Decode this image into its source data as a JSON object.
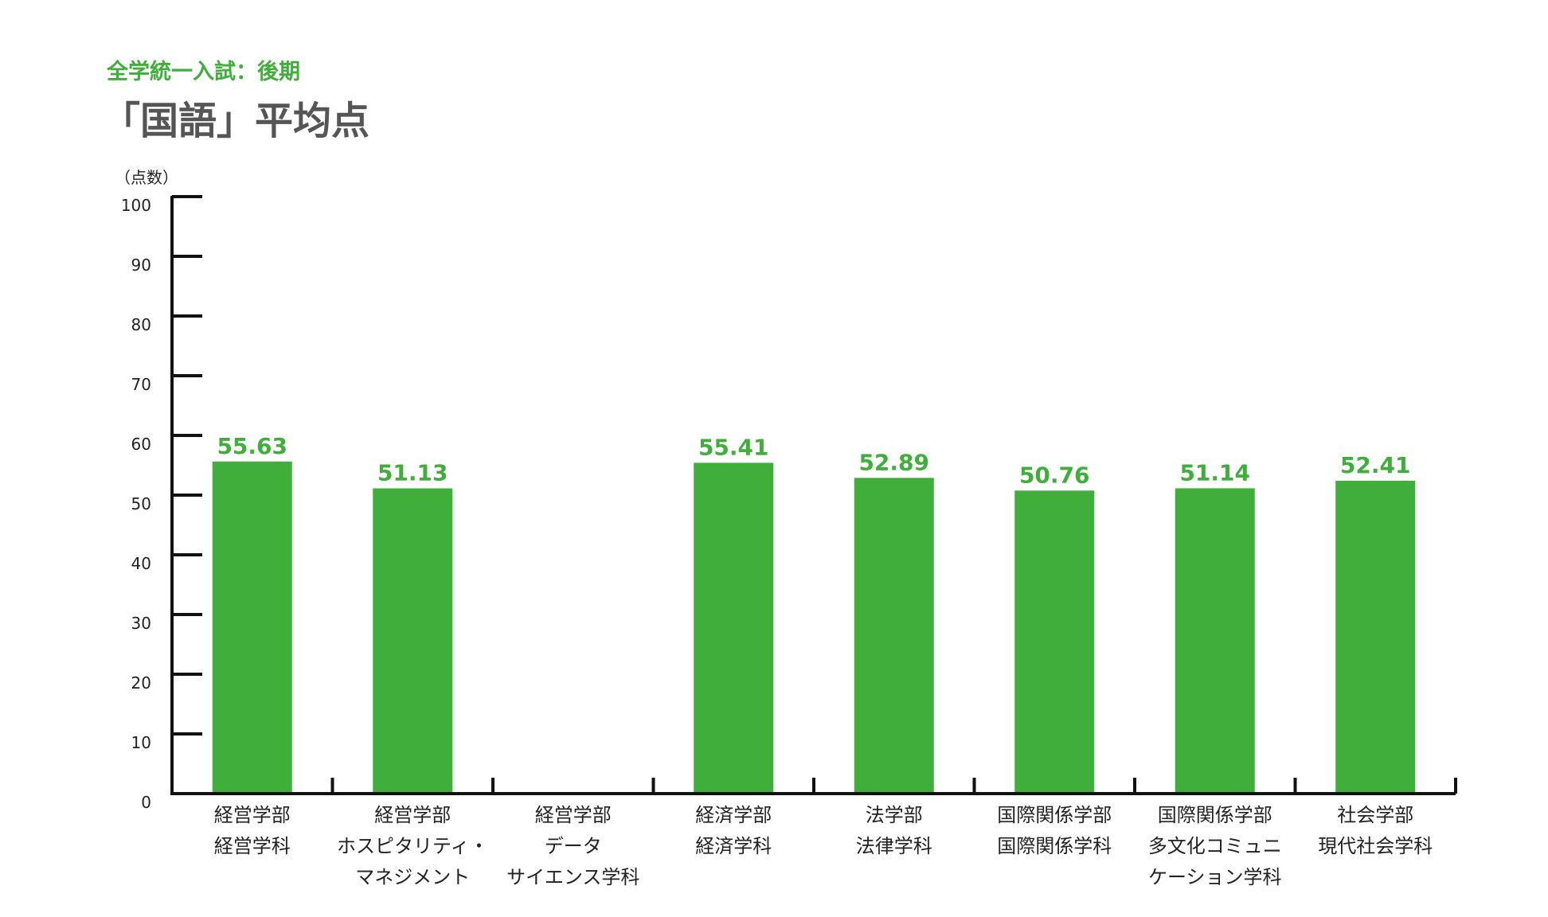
{
  "subtitle": "全学統一入試：後期",
  "title": "「国語」平均点",
  "chart_data": {
    "type": "bar",
    "ylabel": "（点数）",
    "ylim": [
      0,
      100
    ],
    "yticks": [
      "0",
      "10",
      "20",
      "30",
      "40",
      "50",
      "60",
      "70",
      "80",
      "90",
      "100"
    ],
    "categories": [
      [
        "経営学部",
        "経営学科"
      ],
      [
        "経営学部",
        "ホスピタリティ・",
        "マネジメント"
      ],
      [
        "経営学部",
        "データ",
        "サイエンス学科"
      ],
      [
        "経済学部",
        "経済学科"
      ],
      [
        "法学部",
        "法律学科"
      ],
      [
        "国際関係学部",
        "国際関係学科"
      ],
      [
        "国際関係学部",
        "多文化コミュニ",
        "ケーション学科"
      ],
      [
        "社会学部",
        "現代社会学科"
      ]
    ],
    "values": [
      55.63,
      51.13,
      null,
      55.41,
      52.89,
      50.76,
      51.14,
      52.41
    ],
    "value_labels": [
      "55.63",
      "51.13",
      "",
      "55.41",
      "52.89",
      "50.76",
      "51.14",
      "52.41"
    ],
    "bar_color": "#3fae3a",
    "axis_color": "#111111",
    "grid": false,
    "legend": "none"
  }
}
